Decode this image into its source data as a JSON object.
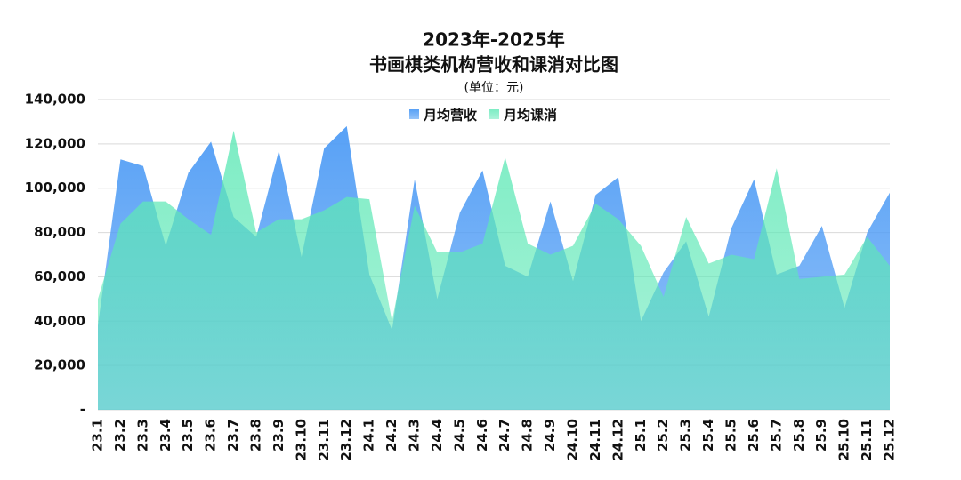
{
  "chart_data": {
    "type": "area",
    "title": [
      "2023年-2025年",
      "书画棋类机构营收和课消对比图"
    ],
    "subtitle": "(单位：元)",
    "categories": [
      "23.1",
      "23.2",
      "23.3",
      "23.4",
      "23.5",
      "23.6",
      "23.7",
      "23.8",
      "23.9",
      "23.10",
      "23.11",
      "23.12",
      "24.1",
      "24.2",
      "24.3",
      "24.4",
      "24.5",
      "24.6",
      "24.7",
      "24.8",
      "24.9",
      "24.10",
      "24.11",
      "24.12",
      "25.1",
      "25.2",
      "25.3",
      "25.4",
      "25.5",
      "25.6",
      "25.7",
      "25.8",
      "25.9",
      "25.10",
      "25.11",
      "25.12"
    ],
    "series": [
      {
        "name": "月均营收",
        "color": "#4f9cf5",
        "values": [
          38000,
          113000,
          110000,
          74000,
          107000,
          121000,
          87000,
          78000,
          117000,
          69000,
          118000,
          128000,
          61000,
          36000,
          104000,
          50000,
          89000,
          108000,
          65000,
          60000,
          94000,
          58000,
          97000,
          105000,
          40000,
          62000,
          76000,
          42000,
          82000,
          104000,
          61000,
          65000,
          83000,
          46000,
          80000,
          98000
        ]
      },
      {
        "name": "月均课消",
        "color": "#5ee8b6",
        "values": [
          50000,
          84000,
          94000,
          94000,
          86000,
          79000,
          126000,
          80000,
          86000,
          86000,
          90000,
          96000,
          95000,
          40000,
          92000,
          71000,
          71000,
          75000,
          114000,
          75000,
          70000,
          74000,
          93000,
          86000,
          74000,
          51000,
          87000,
          66000,
          70000,
          68000,
          109000,
          59000,
          60000,
          61000,
          78000,
          65000
        ]
      }
    ],
    "ylim": [
      0,
      140000
    ],
    "yticks": [
      {
        "value": 0,
        "label": "-"
      },
      {
        "value": 20000,
        "label": "20,000"
      },
      {
        "value": 40000,
        "label": "40,000"
      },
      {
        "value": 60000,
        "label": "60,000"
      },
      {
        "value": 80000,
        "label": "80,000"
      },
      {
        "value": 100000,
        "label": "100,000"
      },
      {
        "value": 120000,
        "label": "120,000"
      },
      {
        "value": 140000,
        "label": "140,000"
      }
    ],
    "grid": true,
    "legend": "top"
  }
}
